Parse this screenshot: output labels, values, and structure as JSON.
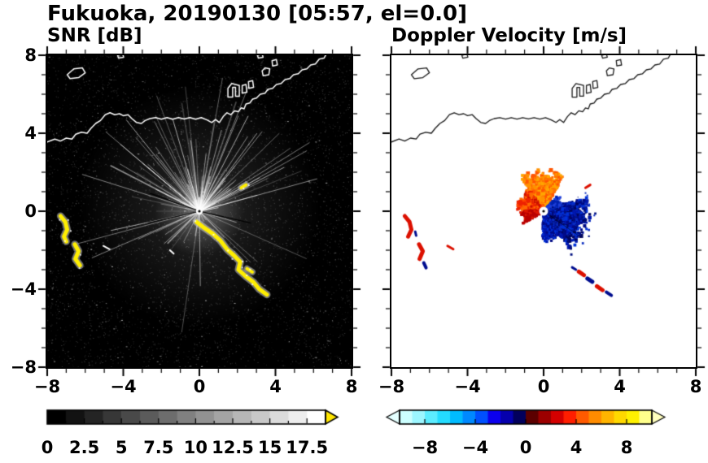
{
  "title": "Fukuoka, 20190130 [05:57, el=0.0]",
  "panels": {
    "left": {
      "subtitle": "SNR [dB]"
    },
    "right": {
      "subtitle": "Doppler Velocity [m/s]"
    }
  },
  "axes": {
    "range": [
      -8,
      8
    ],
    "minor_step": 1,
    "major_step": 4,
    "x_ticks": [
      {
        "v": -8,
        "label": "−8"
      },
      {
        "v": -4,
        "label": "−4"
      },
      {
        "v": 0,
        "label": "0"
      },
      {
        "v": 4,
        "label": "4"
      },
      {
        "v": 8,
        "label": "8"
      }
    ],
    "y_ticks": [
      {
        "v": 8,
        "label": "8"
      },
      {
        "v": 4,
        "label": "4"
      },
      {
        "v": 0,
        "label": "0"
      },
      {
        "v": -4,
        "label": "−4"
      },
      {
        "v": -8,
        "label": "−8"
      }
    ]
  },
  "colorbars": {
    "snr": {
      "min": 0,
      "max": 18.75,
      "segments": 15,
      "start_color": "#000000",
      "end_color": "#ffffff",
      "over_color": "#ffe600",
      "tick_values": [
        0,
        2.5,
        5,
        7.5,
        10,
        12.5,
        15,
        17.5
      ],
      "tick_labels": [
        "0",
        "2.5",
        "5",
        "7.5",
        "10",
        "12.5",
        "15",
        "17.5"
      ]
    },
    "doppler": {
      "min": -10,
      "max": 10,
      "stops": [
        "#ccffff",
        "#9cf6ff",
        "#5cecff",
        "#24dcff",
        "#00bbff",
        "#0089ff",
        "#0050ff",
        "#0b00ee",
        "#0500ad",
        "#02005c",
        "#5c0000",
        "#9c0000",
        "#d40000",
        "#ff1e00",
        "#ff5a00",
        "#ff8c00",
        "#ffb400",
        "#ffd800",
        "#fff100",
        "#ffff8c"
      ],
      "under_color": "#e4ffff",
      "over_color": "#ffffbf",
      "tick_values": [
        -8,
        -4,
        0,
        4,
        8
      ],
      "tick_labels": [
        "−8",
        "−4",
        "0",
        "4",
        "8"
      ]
    }
  },
  "chart_data": {
    "type": "heatmap",
    "subtype": "radar-ppi-pair",
    "site": "Fukuoka",
    "date": "20190130",
    "time": "05:57",
    "elevation_deg": 0.0,
    "x_range": [
      -8,
      8
    ],
    "y_range": [
      -8,
      8
    ],
    "radar_center_xy": [
      0,
      0
    ],
    "panels": [
      {
        "id": "snr",
        "title": "SNR [dB]",
        "units": "dB",
        "background": "#000000",
        "colormap": "grayscale 0-17.5, yellow above max"
      },
      {
        "id": "doppler",
        "title": "Doppler Velocity [m/s]",
        "units": "m/s",
        "background": "#ffffff",
        "colormap": "cyan-blue-black-red-orange-yellow, -10 to 10"
      }
    ],
    "coastline": {
      "main": [
        [
          -8.0,
          3.55
        ],
        [
          -7.6,
          3.7
        ],
        [
          -7.3,
          3.6
        ],
        [
          -7.0,
          3.75
        ],
        [
          -6.7,
          3.7
        ],
        [
          -6.5,
          3.95
        ],
        [
          -6.2,
          4.05
        ],
        [
          -5.9,
          4.0
        ],
        [
          -5.7,
          4.25
        ],
        [
          -5.45,
          4.5
        ],
        [
          -5.2,
          4.65
        ],
        [
          -4.95,
          4.95
        ],
        [
          -4.7,
          5.05
        ],
        [
          -4.45,
          4.95
        ],
        [
          -4.2,
          5.0
        ],
        [
          -4.0,
          4.9
        ],
        [
          -3.75,
          4.95
        ],
        [
          -3.55,
          4.75
        ],
        [
          -3.3,
          4.55
        ],
        [
          -3.05,
          4.5
        ],
        [
          -2.85,
          4.65
        ],
        [
          -2.6,
          4.75
        ],
        [
          -2.3,
          4.8
        ],
        [
          -2.0,
          4.72
        ],
        [
          -1.7,
          4.8
        ],
        [
          -1.4,
          4.72
        ],
        [
          -1.1,
          4.8
        ],
        [
          -0.8,
          4.73
        ],
        [
          -0.5,
          4.8
        ],
        [
          -0.2,
          4.72
        ],
        [
          0.1,
          4.8
        ],
        [
          0.4,
          4.68
        ],
        [
          0.65,
          4.55
        ],
        [
          0.85,
          4.7
        ],
        [
          1.05,
          4.55
        ],
        [
          1.25,
          4.85
        ],
        [
          1.45,
          5.05
        ],
        [
          1.65,
          4.95
        ],
        [
          1.85,
          5.15
        ],
        [
          2.05,
          5.1
        ],
        [
          2.2,
          5.3
        ],
        [
          2.35,
          5.25
        ],
        [
          2.45,
          5.5
        ],
        [
          2.65,
          5.55
        ],
        [
          2.8,
          5.75
        ],
        [
          3.0,
          5.8
        ],
        [
          3.2,
          6.0
        ],
        [
          3.45,
          6.05
        ],
        [
          3.6,
          6.25
        ],
        [
          3.85,
          6.3
        ],
        [
          4.05,
          6.5
        ],
        [
          4.3,
          6.55
        ],
        [
          4.5,
          6.75
        ],
        [
          4.75,
          6.8
        ],
        [
          4.95,
          7.0
        ],
        [
          5.2,
          7.05
        ],
        [
          5.4,
          7.25
        ],
        [
          5.65,
          7.3
        ],
        [
          5.85,
          7.5
        ],
        [
          6.1,
          7.55
        ],
        [
          6.3,
          7.8
        ],
        [
          6.55,
          7.85
        ],
        [
          6.7,
          8.1
        ]
      ],
      "islands": [
        [
          [
            -6.95,
            7.0
          ],
          [
            -6.6,
            7.3
          ],
          [
            -6.15,
            7.35
          ],
          [
            -6.0,
            7.1
          ],
          [
            -6.35,
            6.85
          ],
          [
            -6.8,
            6.8
          ]
        ],
        [
          [
            -4.25,
            7.85
          ],
          [
            -3.98,
            7.9
          ],
          [
            -4.03,
            8.05
          ],
          [
            -4.3,
            8.0
          ]
        ],
        [
          [
            3.35,
            6.95
          ],
          [
            3.65,
            7.0
          ],
          [
            3.7,
            7.3
          ],
          [
            3.45,
            7.35
          ],
          [
            3.3,
            7.2
          ]
        ],
        [
          [
            3.85,
            7.45
          ],
          [
            4.1,
            7.5
          ],
          [
            4.05,
            7.78
          ],
          [
            3.82,
            7.72
          ]
        ],
        [
          [
            3.1,
            7.85
          ],
          [
            3.35,
            7.9
          ],
          [
            3.3,
            8.05
          ],
          [
            3.05,
            8.0
          ]
        ]
      ],
      "harbor": [
        [
          [
            1.5,
            5.85
          ],
          [
            1.75,
            5.85
          ],
          [
            1.75,
            6.35
          ],
          [
            1.9,
            6.35
          ],
          [
            1.9,
            5.9
          ],
          [
            2.1,
            5.9
          ],
          [
            2.1,
            6.45
          ],
          [
            1.7,
            6.55
          ],
          [
            1.5,
            6.3
          ]
        ],
        [
          [
            2.25,
            6.05
          ],
          [
            2.5,
            6.1
          ],
          [
            2.45,
            6.5
          ],
          [
            2.25,
            6.45
          ]
        ],
        [
          [
            2.6,
            6.3
          ],
          [
            2.85,
            6.35
          ],
          [
            2.8,
            6.7
          ],
          [
            2.58,
            6.65
          ]
        ]
      ]
    },
    "snr": {
      "seed": 11,
      "speckle_count": 5200,
      "ray_count": 175,
      "blocked_beam_angles_deg": [
        160,
        193,
        347
      ],
      "strong_echoes": [
        {
          "pts": [
            [
              -7.3,
              -0.25
            ],
            [
              -7.05,
              -0.55
            ],
            [
              -6.95,
              -0.95
            ],
            [
              -7.12,
              -1.3
            ],
            [
              -7.0,
              -1.55
            ]
          ],
          "w": 5
        },
        {
          "pts": [
            [
              -6.55,
              -1.7
            ],
            [
              -6.35,
              -2.05
            ],
            [
              -6.52,
              -2.45
            ],
            [
              -6.28,
              -2.78
            ]
          ],
          "w": 5
        },
        {
          "pts": [
            [
              -0.15,
              -0.55
            ],
            [
              0.25,
              -0.85
            ],
            [
              0.7,
              -1.15
            ],
            [
              1.1,
              -1.5
            ],
            [
              1.45,
              -1.95
            ],
            [
              1.8,
              -2.25
            ],
            [
              2.15,
              -2.6
            ],
            [
              2.05,
              -3.0
            ],
            [
              2.45,
              -3.35
            ],
            [
              2.85,
              -3.65
            ],
            [
              3.15,
              -4.0
            ],
            [
              3.55,
              -4.28
            ]
          ],
          "w": 5
        },
        {
          "pts": [
            [
              2.5,
              -2.95
            ],
            [
              2.78,
              -3.12
            ]
          ],
          "w": 4
        },
        {
          "pts": [
            [
              2.2,
              1.2
            ],
            [
              2.45,
              1.35
            ]
          ],
          "w": 4
        }
      ],
      "white_dashes": [
        [
          [
            -5.05,
            -1.78
          ],
          [
            -4.72,
            -1.95
          ]
        ],
        [
          [
            -1.55,
            -2.0
          ],
          [
            -1.35,
            -2.18
          ]
        ]
      ]
    },
    "doppler": {
      "seed": 23,
      "lobes": [
        {
          "name": "outbound-orange",
          "angles_deg": [
            60,
            125
          ],
          "rmax": 2.2,
          "count": 780,
          "size": [
            2,
            5
          ],
          "palette": [
            "#ff9100",
            "#ff7300",
            "#ff5500",
            "#ffa500"
          ]
        },
        {
          "name": "outbound-red",
          "angles_deg": [
            125,
            178
          ],
          "rmax": 1.45,
          "count": 480,
          "size": [
            2,
            5
          ],
          "palette": [
            "#ff4400",
            "#ee2200",
            "#cc0f00",
            "#ff6a00"
          ]
        },
        {
          "name": "outbound-red-west",
          "angles_deg": [
            178,
            212
          ],
          "rmax": 1.3,
          "count": 200,
          "size": [
            2,
            4
          ],
          "palette": [
            "#e01800",
            "#b80000"
          ]
        },
        {
          "name": "inbound-dark-blue",
          "angles_deg": [
            -55,
            18
          ],
          "rmax": 2.55,
          "count": 980,
          "size": [
            2,
            5
          ],
          "palette": [
            "#0031d8",
            "#0016ad",
            "#000a86",
            "#00055e"
          ]
        },
        {
          "name": "inbound-blue-low",
          "angles_deg": [
            -92,
            -55
          ],
          "rmax": 1.6,
          "count": 380,
          "size": [
            2,
            4
          ],
          "palette": [
            "#0031d8",
            "#0016ad",
            "#000a86"
          ]
        },
        {
          "name": "inbound-blue-upper",
          "angles_deg": [
            18,
            48
          ],
          "rmax": 1.15,
          "count": 230,
          "size": [
            2,
            4
          ],
          "palette": [
            "#1f3fd8",
            "#0022b0"
          ]
        },
        {
          "name": "inbound-outer-specks",
          "angles_deg": [
            -60,
            25
          ],
          "rmax": 3.1,
          "count": 130,
          "size": [
            1,
            3
          ],
          "palette": [
            "#0a2cc0",
            "#001080"
          ]
        }
      ],
      "patch_colors": {
        "red": "#dc1000",
        "navy": "#000d8f"
      },
      "patches": [
        {
          "pts": [
            [
              -7.3,
              -0.25
            ],
            [
              -7.05,
              -0.55
            ],
            [
              -6.95,
              -0.95
            ],
            [
              -7.12,
              -1.3
            ]
          ],
          "color": "red",
          "w": 5
        },
        {
          "pts": [
            [
              -6.55,
              -1.7
            ],
            [
              -6.35,
              -2.05
            ],
            [
              -6.52,
              -2.45
            ]
          ],
          "color": "red",
          "w": 5
        },
        {
          "pts": [
            [
              -6.3,
              -2.65
            ],
            [
              -6.18,
              -2.9
            ]
          ],
          "color": "navy",
          "w": 4
        },
        {
          "pts": [
            [
              -6.75,
              -1.05
            ],
            [
              -6.7,
              -1.25
            ]
          ],
          "color": "navy",
          "w": 3
        },
        {
          "pts": [
            [
              -5.05,
              -1.78
            ],
            [
              -4.75,
              -1.95
            ]
          ],
          "color": "red",
          "w": 3
        },
        {
          "pts": [
            [
              1.85,
              -3.1
            ],
            [
              2.12,
              -3.28
            ]
          ],
          "color": "red",
          "w": 5
        },
        {
          "pts": [
            [
              2.3,
              -3.45
            ],
            [
              2.56,
              -3.62
            ]
          ],
          "color": "navy",
          "w": 5
        },
        {
          "pts": [
            [
              2.8,
              -3.85
            ],
            [
              3.1,
              -4.05
            ]
          ],
          "color": "red",
          "w": 5
        },
        {
          "pts": [
            [
              3.3,
              -4.15
            ],
            [
              3.56,
              -4.32
            ]
          ],
          "color": "navy",
          "w": 4
        },
        {
          "pts": [
            [
              1.5,
              -2.88
            ],
            [
              1.7,
              -3.0
            ]
          ],
          "color": "navy",
          "w": 3
        },
        {
          "pts": [
            [
              2.2,
              1.2
            ],
            [
              2.45,
              1.35
            ]
          ],
          "color": "red",
          "w": 3
        }
      ]
    }
  }
}
